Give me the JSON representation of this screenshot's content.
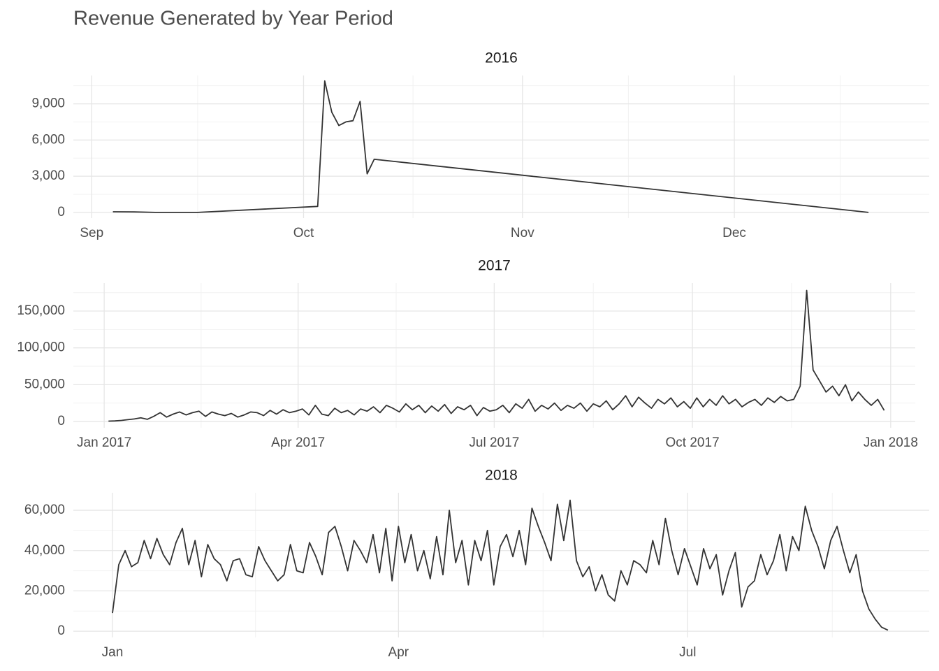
{
  "title": "Revenue Generated by Year Period",
  "chart_data": [
    {
      "type": "line",
      "title": "2016",
      "color": "#333333",
      "grid": true,
      "x": [
        3,
        6,
        9,
        12,
        15,
        32,
        33,
        34,
        35,
        36,
        37,
        38,
        39,
        40,
        110
      ],
      "values": [
        50,
        40,
        0,
        0,
        0,
        500,
        10900,
        8300,
        7200,
        7500,
        7600,
        9200,
        3200,
        4400,
        0
      ],
      "xlim": [
        -2.6,
        118.6
      ],
      "ylim": [
        -470,
        11350
      ],
      "xticks": [
        {
          "value": 0,
          "label": "Sep"
        },
        {
          "value": 30,
          "label": "Oct"
        },
        {
          "value": 61,
          "label": "Nov"
        },
        {
          "value": 91,
          "label": "Dec"
        }
      ],
      "yticks": [
        0,
        {
          "value": 3000,
          "label": "3,000"
        },
        {
          "value": 6000,
          "label": "6,000"
        },
        {
          "value": 9000,
          "label": "9,000"
        }
      ]
    },
    {
      "type": "line",
      "title": "2017",
      "color": "#333333",
      "grid": true,
      "x": [
        2,
        5,
        8,
        11,
        14,
        17,
        20,
        23,
        26,
        29,
        32,
        35,
        38,
        41,
        44,
        47,
        50,
        53,
        56,
        59,
        62,
        65,
        68,
        71,
        74,
        77,
        80,
        83,
        86,
        89,
        92,
        95,
        98,
        101,
        104,
        107,
        110,
        113,
        116,
        119,
        122,
        125,
        128,
        131,
        134,
        137,
        140,
        143,
        146,
        149,
        152,
        155,
        158,
        161,
        164,
        167,
        170,
        173,
        176,
        179,
        182,
        185,
        188,
        191,
        194,
        197,
        200,
        203,
        206,
        209,
        212,
        215,
        218,
        221,
        224,
        227,
        230,
        233,
        236,
        239,
        242,
        245,
        248,
        251,
        254,
        257,
        260,
        263,
        266,
        269,
        272,
        275,
        278,
        281,
        284,
        287,
        290,
        293,
        296,
        299,
        302,
        305,
        308,
        311,
        314,
        317,
        320,
        323,
        326,
        329,
        332,
        335,
        338,
        341,
        344,
        347,
        350,
        353,
        356,
        359,
        362
      ],
      "values": [
        500,
        800,
        1500,
        2500,
        3500,
        5000,
        3000,
        7000,
        12000,
        6000,
        10000,
        13000,
        9000,
        12000,
        14000,
        7000,
        13000,
        10000,
        8000,
        11000,
        6000,
        9000,
        13000,
        12000,
        8000,
        15000,
        10000,
        16000,
        12000,
        14000,
        17000,
        9000,
        22000,
        10000,
        8000,
        18000,
        12000,
        15000,
        9000,
        17000,
        14000,
        20000,
        12000,
        22000,
        18000,
        13000,
        24000,
        16000,
        22000,
        12000,
        21000,
        14000,
        23000,
        11000,
        20000,
        16000,
        22000,
        8000,
        19000,
        14000,
        16000,
        22000,
        12000,
        24000,
        18000,
        30000,
        14000,
        22000,
        17000,
        25000,
        15000,
        22000,
        18000,
        25000,
        14000,
        24000,
        20000,
        28000,
        16000,
        24000,
        35000,
        20000,
        33000,
        25000,
        18000,
        30000,
        24000,
        32000,
        20000,
        27000,
        18000,
        32000,
        20000,
        30000,
        22000,
        35000,
        24000,
        30000,
        20000,
        26000,
        30000,
        22000,
        32000,
        26000,
        34000,
        28000,
        30000,
        48000,
        178000,
        70000,
        55000,
        40000,
        48000,
        35000,
        50000,
        28000,
        40000,
        30000,
        22000,
        30000,
        15000
      ],
      "xlim": [
        -14.3,
        376.4
      ],
      "ylim": [
        -8500,
        188000
      ],
      "xticks": [
        {
          "value": 0,
          "label": "Jan 2017"
        },
        {
          "value": 90,
          "label": "Apr 2017"
        },
        {
          "value": 181,
          "label": "Jul 2017"
        },
        {
          "value": 273,
          "label": "Oct 2017"
        },
        {
          "value": 365,
          "label": "Jan 2018"
        }
      ],
      "yticks": [
        0,
        {
          "value": 50000,
          "label": "50,000"
        },
        {
          "value": 100000,
          "label": "100,000"
        },
        {
          "value": 150000,
          "label": "150,000"
        }
      ]
    },
    {
      "type": "line",
      "title": "2018",
      "color": "#333333",
      "grid": true,
      "x": [
        0,
        2,
        4,
        6,
        8,
        10,
        12,
        14,
        16,
        18,
        20,
        22,
        24,
        26,
        28,
        30,
        32,
        34,
        36,
        38,
        40,
        42,
        44,
        46,
        48,
        50,
        52,
        54,
        56,
        58,
        60,
        62,
        64,
        66,
        68,
        70,
        72,
        74,
        76,
        78,
        80,
        82,
        84,
        86,
        88,
        90,
        92,
        94,
        96,
        98,
        100,
        102,
        104,
        106,
        108,
        110,
        112,
        114,
        116,
        118,
        120,
        122,
        124,
        126,
        128,
        130,
        132,
        134,
        136,
        138,
        140,
        142,
        144,
        146,
        148,
        150,
        152,
        154,
        156,
        158,
        160,
        162,
        164,
        166,
        168,
        170,
        172,
        174,
        176,
        178,
        180,
        182,
        184,
        186,
        188,
        190,
        192,
        194,
        196,
        198,
        200,
        202,
        204,
        206,
        208,
        210,
        212,
        214,
        216,
        218,
        220,
        222,
        224,
        226,
        228,
        230,
        232,
        234,
        236,
        238,
        240,
        242,
        244
      ],
      "values": [
        9000,
        33000,
        40000,
        32000,
        34000,
        45000,
        36000,
        46000,
        38000,
        33000,
        44000,
        51000,
        33000,
        45000,
        27000,
        43000,
        36000,
        33000,
        25000,
        35000,
        36000,
        28000,
        27000,
        42000,
        35000,
        30000,
        25000,
        28000,
        43000,
        30000,
        29000,
        44000,
        37000,
        28000,
        49000,
        52000,
        42000,
        30000,
        45000,
        40000,
        34000,
        48000,
        29000,
        51000,
        25000,
        52000,
        34000,
        48000,
        30000,
        40000,
        26000,
        47000,
        28000,
        60000,
        34000,
        45000,
        23000,
        45000,
        35000,
        50000,
        23000,
        42000,
        48000,
        37000,
        50000,
        33000,
        61000,
        52000,
        44000,
        35000,
        63000,
        45000,
        65000,
        35000,
        27000,
        32000,
        20000,
        28000,
        18000,
        15000,
        30000,
        23000,
        35000,
        33000,
        29000,
        45000,
        33000,
        56000,
        40000,
        28000,
        41000,
        32000,
        23000,
        41000,
        31000,
        38000,
        18000,
        30000,
        39000,
        12000,
        22000,
        25000,
        38000,
        28000,
        35000,
        48000,
        30000,
        47000,
        40000,
        62000,
        50000,
        42000,
        31000,
        45000,
        52000,
        40000,
        29000,
        38000,
        20000,
        11000,
        6000,
        2000,
        500
      ],
      "xlim": [
        -12.3,
        257
      ],
      "ylim": [
        -3100,
        68700
      ],
      "xticks": [
        {
          "value": 0,
          "label": "Jan"
        },
        {
          "value": 90,
          "label": "Apr"
        },
        {
          "value": 181,
          "label": "Jul"
        }
      ],
      "yticks": [
        0,
        {
          "value": 20000,
          "label": "20,000"
        },
        {
          "value": 40000,
          "label": "40,000"
        },
        {
          "value": 60000,
          "label": "60,000"
        }
      ]
    }
  ]
}
